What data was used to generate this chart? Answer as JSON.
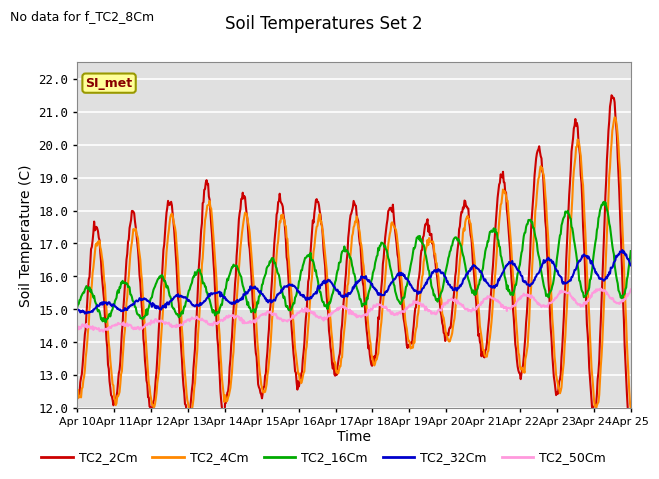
{
  "title": "Soil Temperatures Set 2",
  "subtitle": "No data for f_TC2_8Cm",
  "ylabel": "Soil Temperature (C)",
  "xlabel": "Time",
  "ylim": [
    12.0,
    22.5
  ],
  "yticks": [
    12.0,
    13.0,
    14.0,
    15.0,
    16.0,
    17.0,
    18.0,
    19.0,
    20.0,
    21.0,
    22.0
  ],
  "xtick_labels": [
    "Apr 10",
    "Apr 11",
    "Apr 12",
    "Apr 13",
    "Apr 14",
    "Apr 15",
    "Apr 16",
    "Apr 17",
    "Apr 18",
    "Apr 19",
    "Apr 20",
    "Apr 21",
    "Apr 22",
    "Apr 23",
    "Apr 24",
    "Apr 25"
  ],
  "series_colors": {
    "TC2_2Cm": "#cc0000",
    "TC2_4Cm": "#ff8800",
    "TC2_16Cm": "#00aa00",
    "TC2_32Cm": "#0000cc",
    "TC2_50Cm": "#ff99dd"
  },
  "plot_bg": "#e0e0e0",
  "fig_bg": "#ffffff",
  "grid_color": "#ffffff",
  "annotation_text": "SI_met",
  "annotation_fg": "#880000",
  "annotation_bg": "#ffff99",
  "annotation_border": "#999900",
  "linewidth": 1.5,
  "n_days": 15,
  "pts_per_day": 48
}
